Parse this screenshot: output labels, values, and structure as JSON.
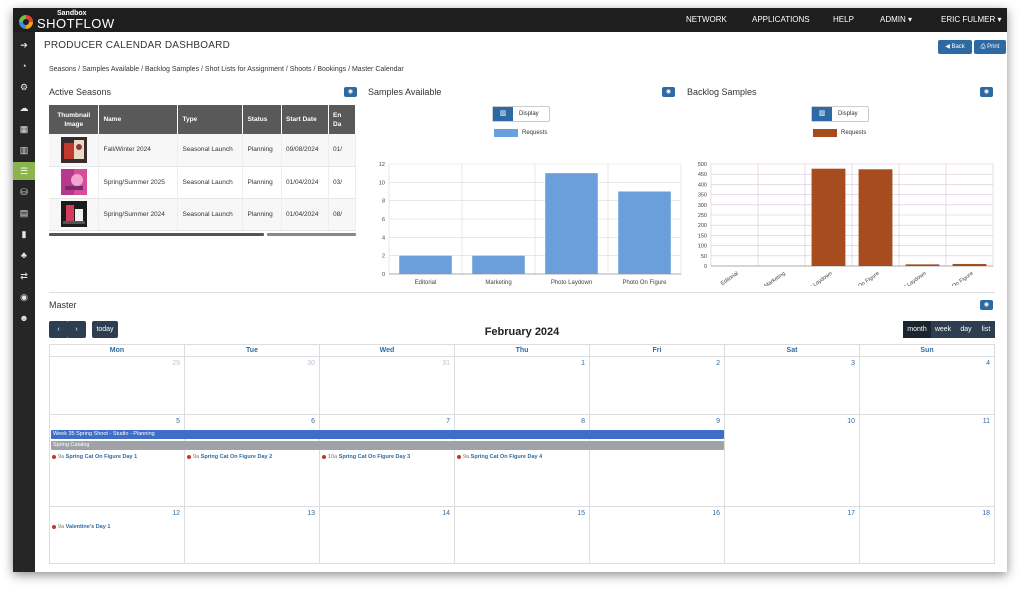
{
  "topbar": {
    "logo_sub": "Sandbox",
    "logo_name": "SHOTFLOW",
    "nav": [
      "NETWORK",
      "APPLICATIONS",
      "HELP",
      "ADMIN ▾",
      "ERIC FULMER ▾"
    ]
  },
  "sidebar": {
    "icons": [
      "arrow-right-icon",
      "dashboard-icon",
      "cogs-icon",
      "cloud-upload-icon",
      "calendar-icon",
      "bar-chart-icon",
      "list-alt-icon",
      "database-icon",
      "table-icon",
      "file-icon",
      "sitemap-icon",
      "exchange-icon",
      "camera-icon",
      "users-icon"
    ],
    "glyphs": [
      "➔",
      "◔",
      "⚙",
      "☁",
      "▦",
      "▥",
      "☰",
      "⛁",
      "▤",
      "▮",
      "♣",
      "⇄",
      "◉",
      "☻"
    ],
    "active_index": 6
  },
  "page": {
    "title": "PRODUCER CALENDAR DASHBOARD",
    "back_label": "Back",
    "print_label": "Print",
    "breadcrumb": "Seasons / Samples Available / Backlog Samples / Shot Lists for Assignment / Shoots / Bookings / Master Calendar"
  },
  "active_seasons": {
    "title": "Active Seasons",
    "columns": [
      "Thumbnail Image",
      "Name",
      "Type",
      "Status",
      "Start Date",
      "En Da"
    ],
    "rows": [
      {
        "name": "Fall/Winter 2024",
        "type": "Seasonal Launch",
        "status": "Planning",
        "start": "09/08/2024",
        "end": "01/"
      },
      {
        "name": "Spring/Summer 2025",
        "type": "Seasonal Launch",
        "status": "Planning",
        "start": "01/04/2024",
        "end": "03/"
      },
      {
        "name": "Spring/Summer 2024",
        "type": "Seasonal Launch",
        "status": "Planning",
        "start": "01/04/2024",
        "end": "08/"
      }
    ]
  },
  "samples_available": {
    "title": "Samples Available",
    "display_label": "Display",
    "legend": "Requests",
    "color": "#6a9fdb"
  },
  "backlog_samples": {
    "title": "Backlog Samples",
    "display_label": "Display",
    "legend": "Requests",
    "color": "#a64c1e"
  },
  "chart_data": [
    {
      "type": "bar",
      "categories": [
        "Editorial",
        "Marketing",
        "Photo Laydown",
        "Photo On Figure"
      ],
      "series": [
        {
          "name": "Requests",
          "values": [
            2,
            2,
            11,
            9
          ]
        }
      ],
      "ylim": [
        0,
        12
      ],
      "yticks": [
        0,
        2,
        4,
        6,
        8,
        10,
        12
      ],
      "grid": true,
      "legend": "top"
    },
    {
      "type": "bar",
      "categories": [
        "Editorial",
        "Marketing",
        "Photo Laydown",
        "Photo On Figure",
        "Reshoot Laydown",
        "Reshoot On Figure"
      ],
      "series": [
        {
          "name": "Requests",
          "values": [
            0,
            0,
            477,
            474,
            8,
            10
          ]
        }
      ],
      "ylim": [
        0,
        500
      ],
      "yticks": [
        0,
        50,
        100,
        150,
        200,
        250,
        300,
        350,
        400,
        450,
        500
      ],
      "grid": true,
      "legend": "top"
    }
  ],
  "master": {
    "title": "Master",
    "today_label": "today",
    "month_title": "February 2024",
    "views": [
      "month",
      "week",
      "day",
      "list"
    ],
    "days": [
      "Mon",
      "Tue",
      "Wed",
      "Thu",
      "Fri",
      "Sat",
      "Sun"
    ],
    "weeks": [
      [
        {
          "n": "29",
          "other": true
        },
        {
          "n": "30",
          "other": true
        },
        {
          "n": "31",
          "other": true
        },
        {
          "n": "1"
        },
        {
          "n": "2"
        },
        {
          "n": "3"
        },
        {
          "n": "4"
        }
      ],
      [
        {
          "n": "5"
        },
        {
          "n": "6"
        },
        {
          "n": "7"
        },
        {
          "n": "8"
        },
        {
          "n": "9"
        },
        {
          "n": "10"
        },
        {
          "n": "11"
        }
      ],
      [
        {
          "n": "12"
        },
        {
          "n": "13"
        },
        {
          "n": "14"
        },
        {
          "n": "15"
        },
        {
          "n": "16"
        },
        {
          "n": "17"
        },
        {
          "n": "18"
        }
      ]
    ],
    "bars": [
      {
        "label": "Week 35 Spring Shoot - Studio - Planning",
        "color": "#3d6fc9"
      },
      {
        "label": "Spring Catalog",
        "color": "#9fa3a8"
      }
    ],
    "events": [
      {
        "time": "9a",
        "title": "Spring Cat On Figure Day 1"
      },
      {
        "time": "9a",
        "title": "Spring Cat On Figure Day 2"
      },
      {
        "time": "10a",
        "title": "Spring Cat On Figure Day 3"
      },
      {
        "time": "9a",
        "title": "Spring Cat On Figure Day 4"
      },
      {
        "time": "9a",
        "title": "Valentine's Day 1"
      }
    ]
  }
}
